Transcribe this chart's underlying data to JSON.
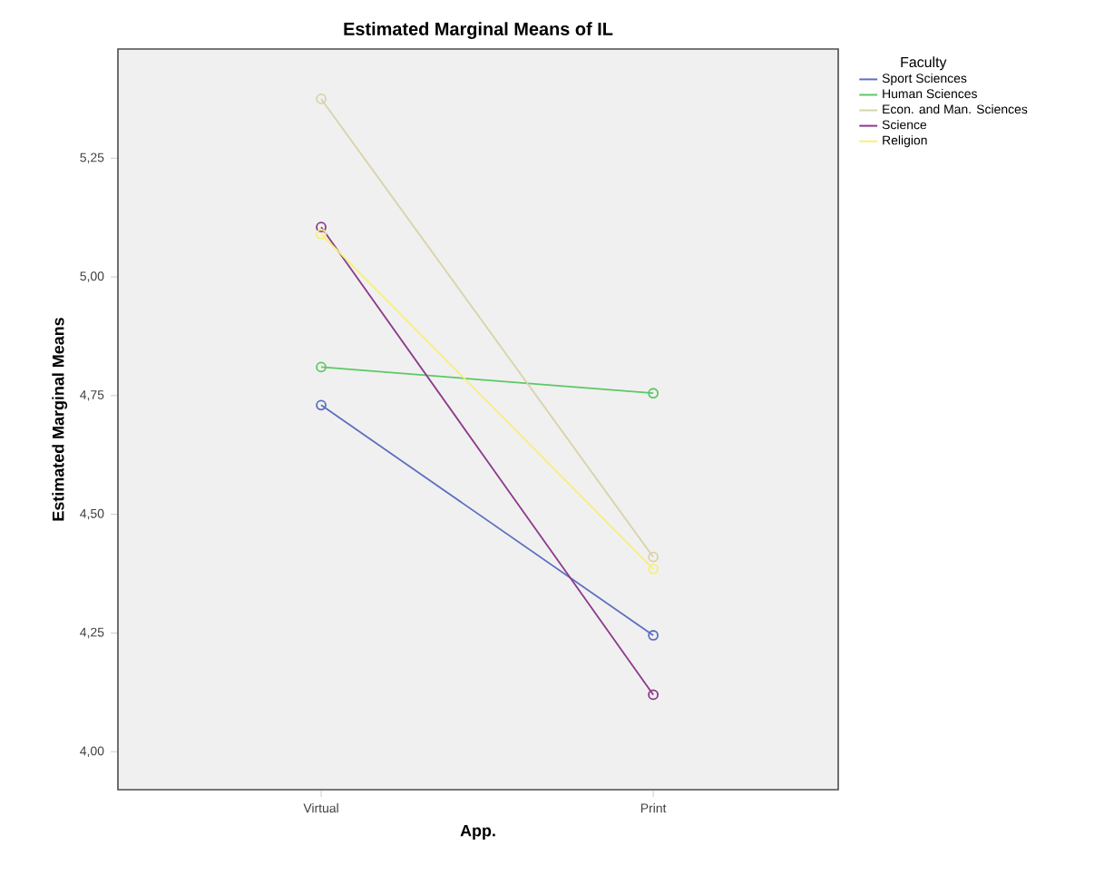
{
  "chart_data": {
    "type": "line",
    "title": "Estimated Marginal Means of IL",
    "xlabel": "App.",
    "ylabel": "Estimated Marginal Means",
    "legend_title": "Faculty",
    "categories": [
      "Virtual",
      "Print"
    ],
    "series": [
      {
        "name": "Sport Sciences",
        "color": "#5a6fc0",
        "values": [
          4.73,
          4.245
        ]
      },
      {
        "name": "Human Sciences",
        "color": "#5cc864",
        "values": [
          4.81,
          4.755
        ]
      },
      {
        "name": "Econ. and Man. Sciences",
        "color": "#d8d2a8",
        "values": [
          5.375,
          4.41
        ]
      },
      {
        "name": "Science",
        "color": "#8b3a8b",
        "values": [
          5.105,
          4.12
        ]
      },
      {
        "name": "Religion",
        "color": "#f5f07a",
        "values": [
          5.09,
          4.385
        ]
      }
    ],
    "ylim": [
      3.92,
      5.48
    ],
    "yticks": [
      {
        "value": 4.0,
        "label": "4,00"
      },
      {
        "value": 4.25,
        "label": "4,25"
      },
      {
        "value": 4.5,
        "label": "4,50"
      },
      {
        "value": 4.75,
        "label": "4,75"
      },
      {
        "value": 5.0,
        "label": "5,00"
      },
      {
        "value": 5.25,
        "label": "5,25"
      }
    ],
    "legend": "top right",
    "marker": "circle",
    "line_style": "solid",
    "grid": false
  }
}
